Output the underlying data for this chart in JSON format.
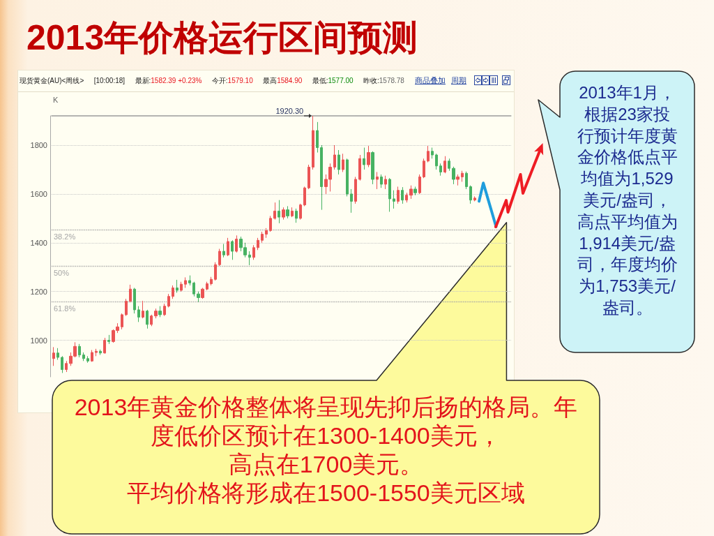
{
  "chart_data": {
    "type": "candlestick",
    "title": "2013年价格运行区间预测",
    "categories": [
      null,
      null,
      null,
      null,
      null,
      null,
      null,
      null,
      null,
      null,
      null,
      null,
      null,
      null,
      null,
      null,
      null,
      null,
      null,
      null,
      null,
      null,
      null,
      null,
      null,
      null,
      null,
      null,
      null,
      null,
      null,
      null,
      null,
      null,
      null,
      null,
      null,
      null,
      null,
      null,
      null,
      null,
      null,
      null,
      null,
      null,
      null,
      null,
      null,
      null,
      null,
      null,
      null,
      null,
      null,
      null,
      null,
      null,
      null,
      null,
      null,
      null,
      null,
      null,
      null,
      null,
      null,
      null,
      null,
      null,
      null,
      null,
      null,
      null,
      null,
      null,
      null,
      null,
      null,
      null,
      null,
      null,
      null,
      null,
      null,
      null,
      null,
      null,
      null,
      null,
      null,
      null,
      null,
      null,
      null,
      null,
      null,
      null,
      null,
      null,
      null,
      null,
      null,
      null,
      null,
      null,
      null,
      null
    ],
    "ohlc": [
      [
        925,
        972,
        895,
        948
      ],
      [
        948,
        968,
        920,
        930
      ],
      [
        930,
        935,
        866,
        880
      ],
      [
        880,
        915,
        870,
        905
      ],
      [
        905,
        950,
        895,
        935
      ],
      [
        935,
        992,
        930,
        975
      ],
      [
        975,
        985,
        930,
        940
      ],
      [
        940,
        950,
        915,
        925
      ],
      [
        925,
        935,
        908,
        915
      ],
      [
        915,
        960,
        912,
        950
      ],
      [
        950,
        965,
        935,
        955
      ],
      [
        955,
        962,
        940,
        948
      ],
      [
        948,
        1010,
        945,
        1000
      ],
      [
        1000,
        1022,
        985,
        995
      ],
      [
        995,
        1045,
        990,
        1040
      ],
      [
        1040,
        1070,
        1030,
        1055
      ],
      [
        1055,
        1110,
        1045,
        1105
      ],
      [
        1105,
        1170,
        1100,
        1160
      ],
      [
        1160,
        1228,
        1155,
        1210
      ],
      [
        1210,
        1215,
        1110,
        1125
      ],
      [
        1125,
        1140,
        1075,
        1095
      ],
      [
        1095,
        1162,
        1090,
        1120
      ],
      [
        1120,
        1125,
        1048,
        1065
      ],
      [
        1065,
        1105,
        1058,
        1100
      ],
      [
        1100,
        1130,
        1090,
        1120
      ],
      [
        1120,
        1140,
        1095,
        1105
      ],
      [
        1105,
        1150,
        1100,
        1140
      ],
      [
        1140,
        1190,
        1135,
        1180
      ],
      [
        1180,
        1225,
        1170,
        1215
      ],
      [
        1215,
        1248,
        1195,
        1205
      ],
      [
        1205,
        1240,
        1200,
        1230
      ],
      [
        1230,
        1258,
        1215,
        1245
      ],
      [
        1245,
        1266,
        1225,
        1235
      ],
      [
        1235,
        1240,
        1180,
        1190
      ],
      [
        1190,
        1200,
        1157,
        1175
      ],
      [
        1175,
        1215,
        1170,
        1210
      ],
      [
        1210,
        1240,
        1205,
        1232
      ],
      [
        1232,
        1260,
        1225,
        1250
      ],
      [
        1250,
        1320,
        1245,
        1310
      ],
      [
        1310,
        1375,
        1305,
        1365
      ],
      [
        1365,
        1395,
        1340,
        1350
      ],
      [
        1350,
        1420,
        1345,
        1405
      ],
      [
        1405,
        1410,
        1330,
        1365
      ],
      [
        1365,
        1430,
        1360,
        1415
      ],
      [
        1415,
        1425,
        1365,
        1380
      ],
      [
        1380,
        1400,
        1340,
        1350
      ],
      [
        1350,
        1365,
        1308,
        1340
      ],
      [
        1340,
        1390,
        1330,
        1380
      ],
      [
        1380,
        1420,
        1370,
        1410
      ],
      [
        1410,
        1445,
        1400,
        1435
      ],
      [
        1435,
        1460,
        1420,
        1450
      ],
      [
        1450,
        1510,
        1445,
        1500
      ],
      [
        1500,
        1565,
        1495,
        1530
      ],
      [
        1530,
        1575,
        1480,
        1505
      ],
      [
        1505,
        1545,
        1495,
        1535
      ],
      [
        1535,
        1550,
        1500,
        1510
      ],
      [
        1510,
        1545,
        1505,
        1530
      ],
      [
        1530,
        1540,
        1482,
        1500
      ],
      [
        1500,
        1560,
        1495,
        1555
      ],
      [
        1555,
        1630,
        1550,
        1625
      ],
      [
        1625,
        1720,
        1620,
        1710
      ],
      [
        1710,
        1920.3,
        1700,
        1860
      ],
      [
        1860,
        1895,
        1770,
        1790
      ],
      [
        1790,
        1800,
        1535,
        1630
      ],
      [
        1630,
        1680,
        1600,
        1660
      ],
      [
        1660,
        1725,
        1610,
        1710
      ],
      [
        1710,
        1800,
        1700,
        1760
      ],
      [
        1760,
        1780,
        1680,
        1700
      ],
      [
        1700,
        1765,
        1690,
        1740
      ],
      [
        1740,
        1745,
        1590,
        1600
      ],
      [
        1600,
        1620,
        1523,
        1570
      ],
      [
        1570,
        1670,
        1560,
        1660
      ],
      [
        1660,
        1760,
        1655,
        1745
      ],
      [
        1745,
        1790,
        1700,
        1720
      ],
      [
        1720,
        1797,
        1710,
        1770
      ],
      [
        1770,
        1775,
        1640,
        1660
      ],
      [
        1660,
        1690,
        1620,
        1670
      ],
      [
        1670,
        1680,
        1625,
        1640
      ],
      [
        1640,
        1675,
        1620,
        1660
      ],
      [
        1660,
        1665,
        1527,
        1580
      ],
      [
        1580,
        1615,
        1540,
        1570
      ],
      [
        1570,
        1630,
        1560,
        1615
      ],
      [
        1615,
        1628,
        1560,
        1575
      ],
      [
        1575,
        1605,
        1565,
        1595
      ],
      [
        1595,
        1635,
        1580,
        1620
      ],
      [
        1620,
        1630,
        1595,
        1605
      ],
      [
        1605,
        1680,
        1600,
        1670
      ],
      [
        1670,
        1745,
        1665,
        1735
      ],
      [
        1735,
        1797,
        1730,
        1775
      ],
      [
        1775,
        1790,
        1745,
        1760
      ],
      [
        1760,
        1765,
        1700,
        1715
      ],
      [
        1715,
        1725,
        1675,
        1690
      ],
      [
        1690,
        1755,
        1685,
        1735
      ],
      [
        1735,
        1745,
        1695,
        1705
      ],
      [
        1705,
        1712,
        1640,
        1660
      ],
      [
        1660,
        1680,
        1635,
        1670
      ],
      [
        1670,
        1695,
        1650,
        1685
      ],
      [
        1685,
        1692,
        1620,
        1630
      ],
      [
        1630,
        1635,
        1560,
        1575
      ],
      [
        1575,
        1590,
        1570,
        1583
      ],
      null,
      null,
      null,
      null,
      null,
      null,
      null,
      null
    ],
    "series": [
      {
        "type": "line",
        "color": "#1f9ddc",
        "values": [
          null,
          null,
          null,
          null,
          null,
          null,
          null,
          null,
          null,
          null,
          null,
          null,
          null,
          null,
          null,
          null,
          null,
          null,
          null,
          null,
          null,
          null,
          null,
          null,
          null,
          null,
          null,
          null,
          null,
          null,
          null,
          null,
          null,
          null,
          null,
          null,
          null,
          null,
          null,
          null,
          null,
          null,
          null,
          null,
          null,
          null,
          null,
          null,
          null,
          null,
          null,
          null,
          null,
          null,
          null,
          null,
          null,
          null,
          null,
          null,
          null,
          null,
          null,
          null,
          null,
          null,
          null,
          null,
          null,
          null,
          null,
          null,
          null,
          null,
          null,
          null,
          null,
          null,
          null,
          null,
          null,
          null,
          null,
          null,
          null,
          null,
          null,
          null,
          null,
          null,
          null,
          null,
          null,
          null,
          null,
          null,
          null,
          null,
          null,
          null,
          1570,
          1645,
          1585,
          1526,
          1466,
          null,
          null,
          null
        ]
      }
    ],
    "ylim": [
      850,
      1920.3
    ],
    "yticks": [
      1000,
      1200,
      1400,
      1600,
      1800
    ],
    "grid": "y",
    "tick_labels": "y",
    "ref_lines": [
      {
        "axis": "y",
        "value": 1452,
        "color": "#a6a6a6",
        "line_style": "dotted"
      },
      {
        "axis": "y",
        "value": 1303,
        "color": "#a6a6a6",
        "line_style": "dotted"
      },
      {
        "axis": "y",
        "value": 1157,
        "color": "#a6a6a6",
        "line_style": "dotted"
      }
    ],
    "annotations": [
      "现货黄金(AU)<周线>",
      "[10:00:18]",
      "最新:1582.39 +0.23%",
      "今开:1579.10",
      "最高1584.90",
      "最低:1577.00",
      "昨收:1578.78",
      "商品叠加",
      "周期",
      "K",
      "1920.30",
      "2013年1月，根据23家投行预计年度黄金价格低点平均值为1,529美元/盎司，高点平均值为1,914美元/盎司，年度均价为1,753美元/盎司。",
      "2013年黄金价格整体将呈现先抑后扬的格局。年度低价区预计在1300-1400美元，",
      "高点在1700美元。",
      "平均价格将形成在1500-1550美元区域",
      {
        "text": "38.2%",
        "y": 1452
      },
      {
        "text": "50%",
        "y": 1303
      },
      {
        "text": "61.8%",
        "y": 1157
      }
    ]
  }
}
